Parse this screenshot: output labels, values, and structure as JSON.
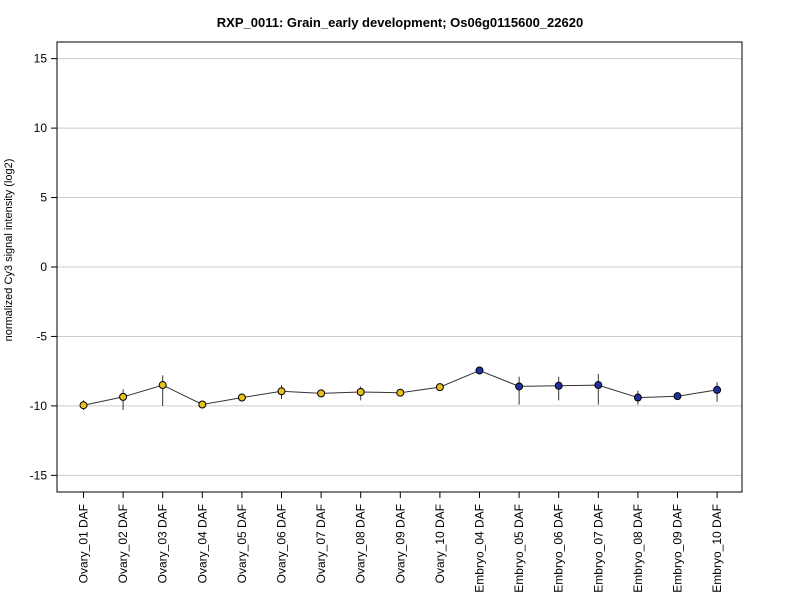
{
  "chart_data": {
    "type": "line",
    "title": "RXP_0011: Grain_early development; Os06g0115600_22620",
    "xlabel": "",
    "ylabel": "normalized Cy3 signal intensity (log2)",
    "ylim": [
      -16.2,
      16.2
    ],
    "yticks": [
      -15,
      -10,
      -5,
      0,
      5,
      10,
      15
    ],
    "grid": true,
    "categories": [
      "Ovary_01 DAF",
      "Ovary_02 DAF",
      "Ovary_03 DAF",
      "Ovary_04 DAF",
      "Ovary_05 DAF",
      "Ovary_06 DAF",
      "Ovary_07 DAF",
      "Ovary_08 DAF",
      "Ovary_09 DAF",
      "Ovary_10 DAF",
      "Embryo_04 DAF",
      "Embryo_05 DAF",
      "Embryo_06 DAF",
      "Embryo_07 DAF",
      "Embryo_08 DAF",
      "Embryo_09 DAF",
      "Embryo_10 DAF"
    ],
    "values": [
      -9.95,
      -9.35,
      -8.5,
      -9.9,
      -9.4,
      -8.95,
      -9.1,
      -9.0,
      -9.05,
      -8.65,
      -7.45,
      -8.6,
      -8.55,
      -8.5,
      -9.4,
      -9.3,
      -8.85
    ],
    "error_low": [
      -10.3,
      -10.3,
      -10.0,
      -10.0,
      -9.6,
      -9.5,
      -9.3,
      -9.6,
      -9.2,
      -8.8,
      -7.5,
      -9.9,
      -9.6,
      -9.9,
      -9.9,
      -9.4,
      -9.7
    ],
    "error_high": [
      -9.6,
      -8.8,
      -7.8,
      -9.8,
      -9.2,
      -8.5,
      -8.9,
      -8.6,
      -8.9,
      -8.5,
      -7.35,
      -7.9,
      -7.9,
      -7.7,
      -8.9,
      -9.2,
      -8.3
    ],
    "point_colors": [
      "#e8c020",
      "#e8c020",
      "#e8c020",
      "#e8c020",
      "#e8c020",
      "#e8c020",
      "#e8c020",
      "#e8c020",
      "#e8c020",
      "#e8c020",
      "#2030a0",
      "#2030a0",
      "#2030a0",
      "#2030a0",
      "#2030a0",
      "#2030a0",
      "#2030a0"
    ]
  }
}
